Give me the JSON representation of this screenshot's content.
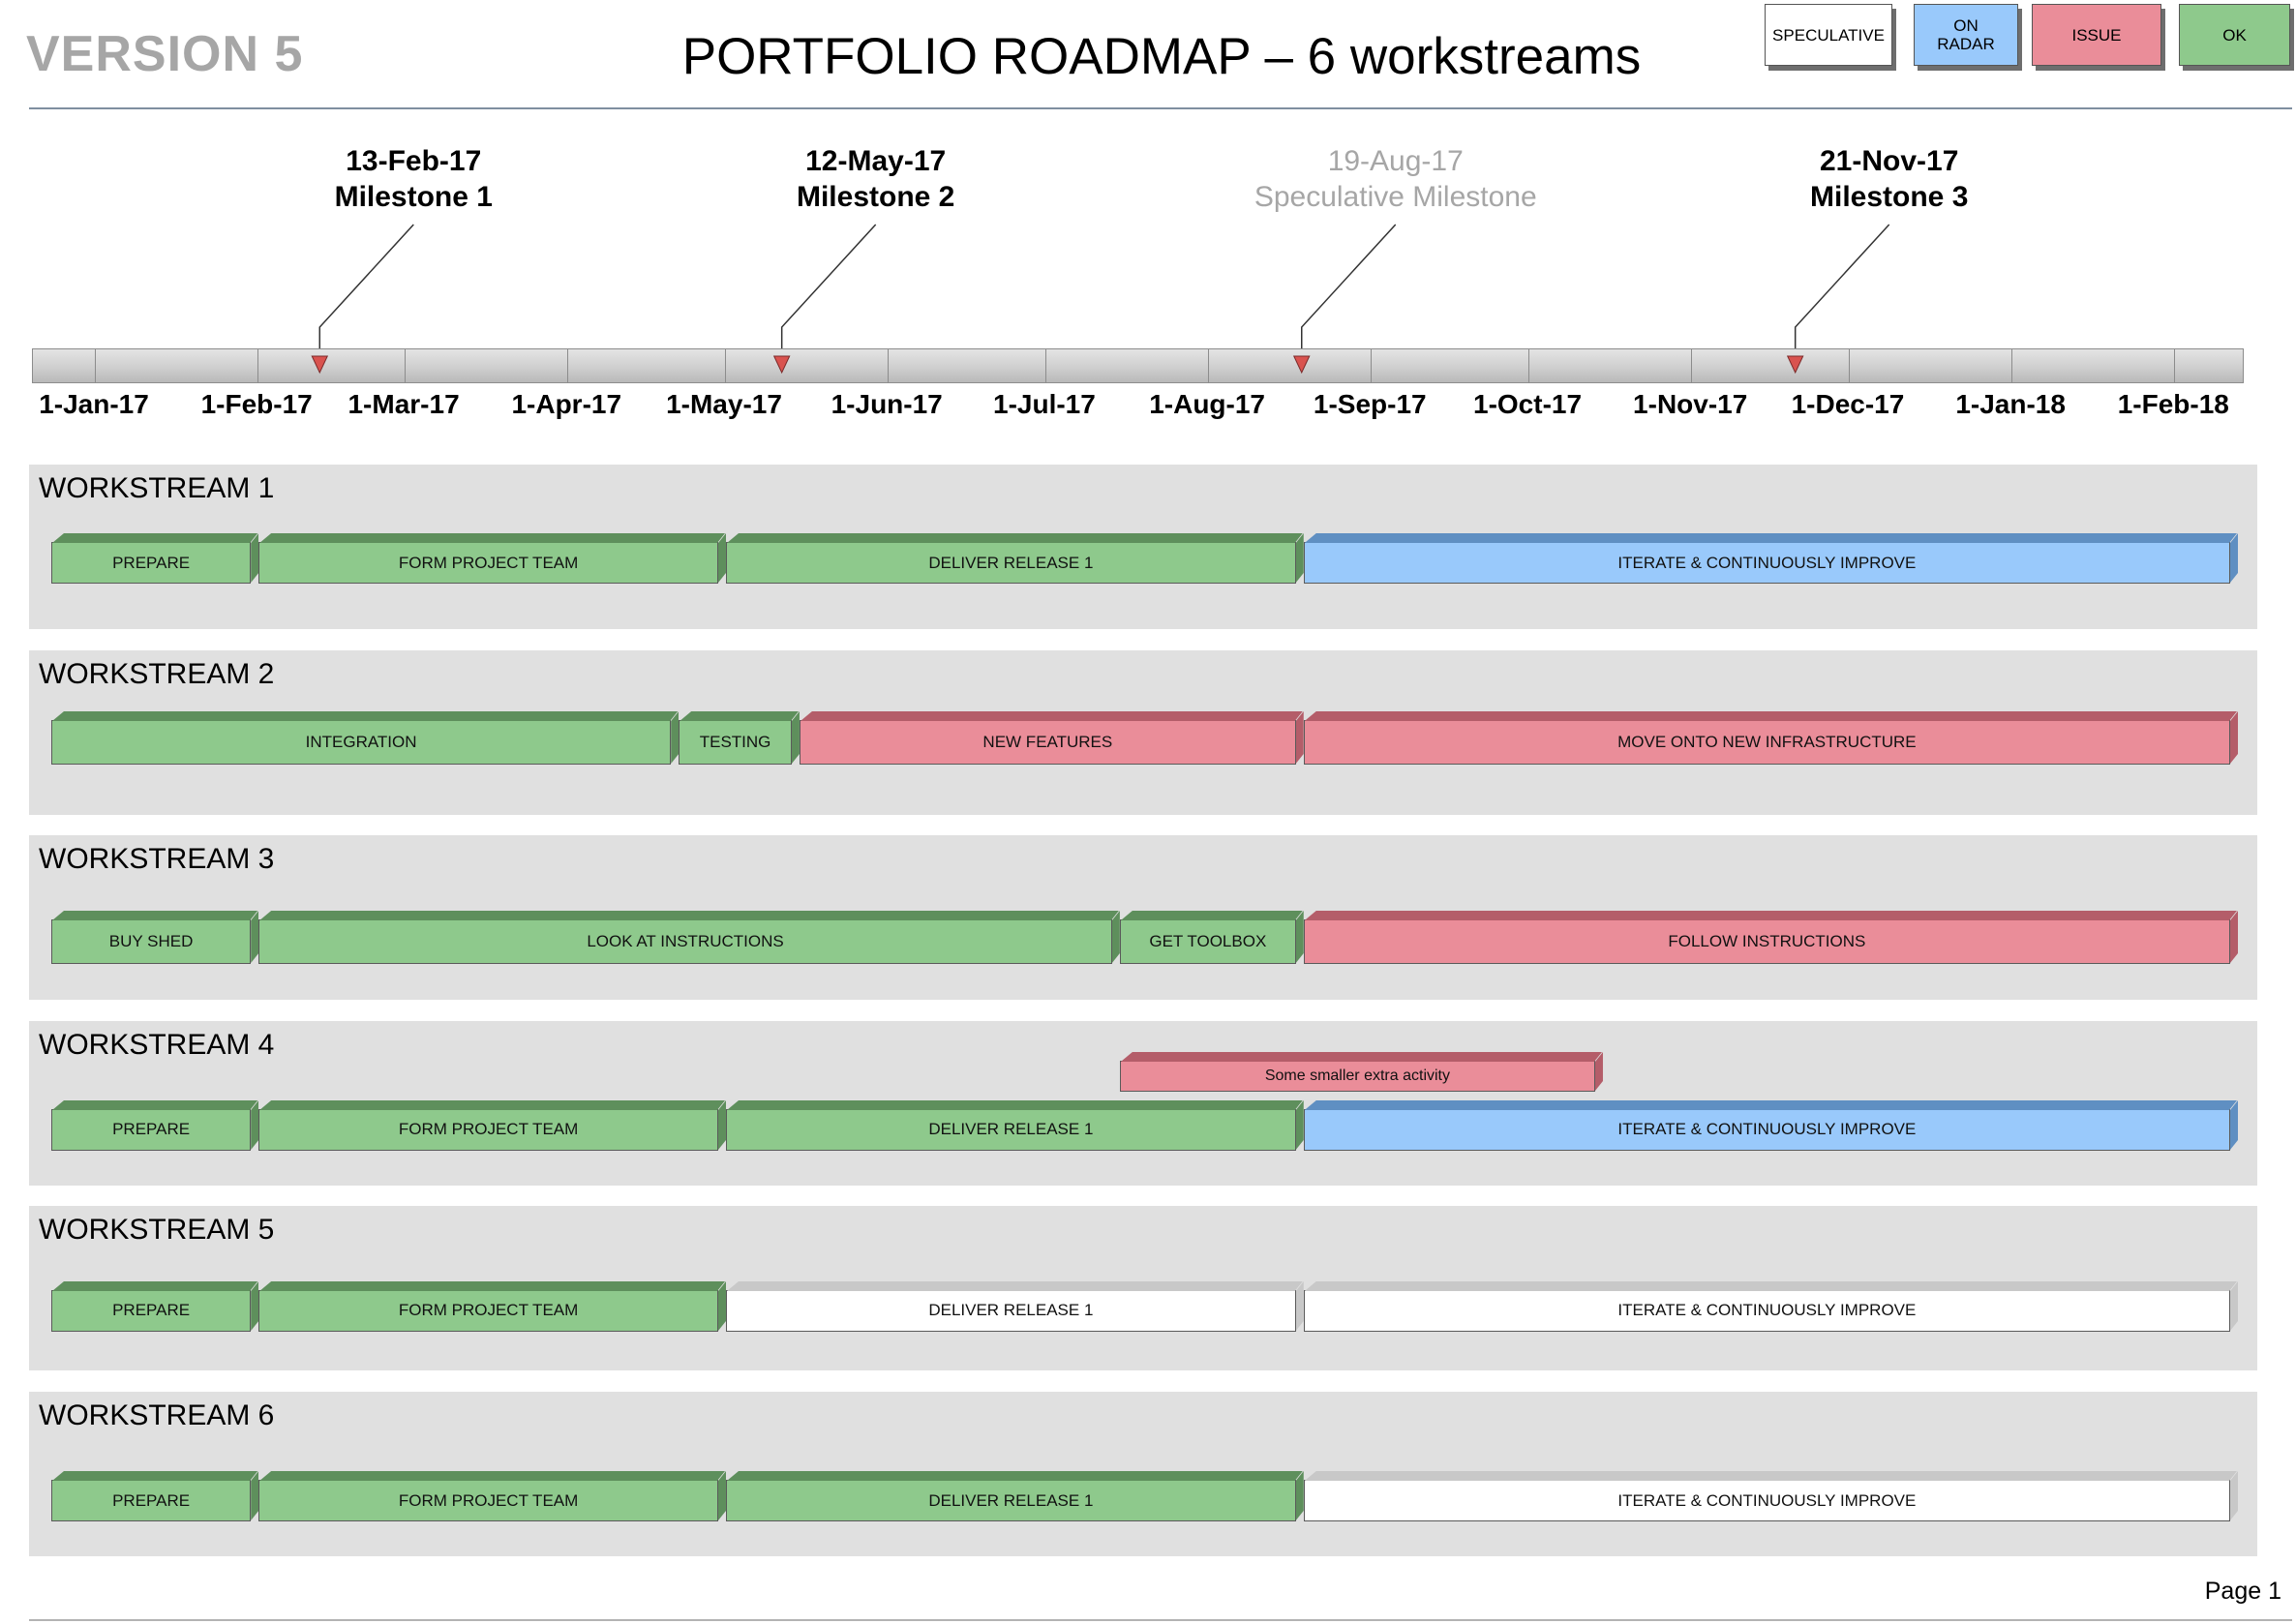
{
  "header": {
    "version": "VERSION 5",
    "title": "PORTFOLIO ROADMAP – 6 workstreams",
    "page": "Page 1"
  },
  "colors": {
    "ok": "#8ec98c",
    "ok_dark": "#5e8f5c",
    "issue": "#ea8d99",
    "issue_dark": "#b45d69",
    "radar": "#99c9fb",
    "radar_dark": "#5f8fc2",
    "speculative": "#ffffff",
    "speculative_dark": "#c8c8c8",
    "milestone_marker": "#d9534f"
  },
  "legend": [
    {
      "label": "SPECULATIVE",
      "status": "speculative"
    },
    {
      "label": "ON\nRADAR",
      "status": "radar"
    },
    {
      "label": "ISSUE",
      "status": "issue"
    },
    {
      "label": "OK",
      "status": "ok"
    }
  ],
  "timeline": {
    "start": "2017-01-01",
    "end": "2018-02-15",
    "months": [
      {
        "label": "1-Jan-17",
        "date": "2017-01-01"
      },
      {
        "label": "1-Feb-17",
        "date": "2017-02-01"
      },
      {
        "label": "1-Mar-17",
        "date": "2017-03-01"
      },
      {
        "label": "1-Apr-17",
        "date": "2017-04-01"
      },
      {
        "label": "1-May-17",
        "date": "2017-05-01"
      },
      {
        "label": "1-Jun-17",
        "date": "2017-06-01"
      },
      {
        "label": "1-Jul-17",
        "date": "2017-07-01"
      },
      {
        "label": "1-Aug-17",
        "date": "2017-08-01"
      },
      {
        "label": "1-Sep-17",
        "date": "2017-09-01"
      },
      {
        "label": "1-Oct-17",
        "date": "2017-10-01"
      },
      {
        "label": "1-Nov-17",
        "date": "2017-11-01"
      },
      {
        "label": "1-Dec-17",
        "date": "2017-12-01"
      },
      {
        "label": "1-Jan-18",
        "date": "2018-01-01"
      },
      {
        "label": "1-Feb-18",
        "date": "2018-02-01"
      }
    ]
  },
  "milestones": [
    {
      "date_label": "13-Feb-17",
      "name": "Milestone 1",
      "date": "2017-02-13",
      "speculative": false
    },
    {
      "date_label": "12-May-17",
      "name": "Milestone 2",
      "date": "2017-05-12",
      "speculative": false
    },
    {
      "date_label": "19-Aug-17",
      "name": "Speculative Milestone",
      "date": "2017-08-19",
      "speculative": true
    },
    {
      "date_label": "21-Nov-17",
      "name": "Milestone 3",
      "date": "2017-11-21",
      "speculative": false
    }
  ],
  "workstreams": [
    {
      "name": "WORKSTREAM 1",
      "tasks": [
        {
          "label": "PREPARE",
          "start": "2017-01-01",
          "end": "2017-02-01",
          "status": "ok"
        },
        {
          "label": "FORM PROJECT TEAM",
          "start": "2017-02-01",
          "end": "2017-05-01",
          "status": "ok"
        },
        {
          "label": "DELIVER RELEASE 1",
          "start": "2017-05-01",
          "end": "2017-08-19",
          "status": "ok"
        },
        {
          "label": "ITERATE & CONTINUOUSLY IMPROVE",
          "start": "2017-08-19",
          "end": "2018-02-15",
          "status": "radar"
        }
      ]
    },
    {
      "name": "WORKSTREAM 2",
      "tasks": [
        {
          "label": "INTEGRATION",
          "start": "2017-01-01",
          "end": "2017-04-22",
          "status": "ok"
        },
        {
          "label": "TESTING",
          "start": "2017-04-22",
          "end": "2017-05-15",
          "status": "ok"
        },
        {
          "label": "NEW FEATURES",
          "start": "2017-05-15",
          "end": "2017-08-19",
          "status": "issue"
        },
        {
          "label": "MOVE ONTO NEW INFRASTRUCTURE",
          "start": "2017-08-19",
          "end": "2018-02-15",
          "status": "issue"
        }
      ]
    },
    {
      "name": "WORKSTREAM 3",
      "tasks": [
        {
          "label": "BUY SHED",
          "start": "2017-01-01",
          "end": "2017-02-01",
          "status": "ok"
        },
        {
          "label": "LOOK AT INSTRUCTIONS",
          "start": "2017-02-01",
          "end": "2017-07-15",
          "status": "ok"
        },
        {
          "label": "GET TOOLBOX",
          "start": "2017-07-15",
          "end": "2017-08-19",
          "status": "ok"
        },
        {
          "label": "FOLLOW INSTRUCTIONS",
          "start": "2017-08-19",
          "end": "2018-02-15",
          "status": "issue"
        }
      ]
    },
    {
      "name": "WORKSTREAM 4",
      "tasks": [
        {
          "label": "PREPARE",
          "start": "2017-01-01",
          "end": "2017-02-01",
          "status": "ok"
        },
        {
          "label": "FORM PROJECT TEAM",
          "start": "2017-02-01",
          "end": "2017-05-01",
          "status": "ok"
        },
        {
          "label": "DELIVER RELEASE 1",
          "start": "2017-05-01",
          "end": "2017-08-19",
          "status": "ok"
        },
        {
          "label": "ITERATE & CONTINUOUSLY IMPROVE",
          "start": "2017-08-19",
          "end": "2018-02-15",
          "status": "radar"
        },
        {
          "label": "Some smaller extra activity",
          "start": "2017-07-15",
          "end": "2017-10-15",
          "status": "issue",
          "overlay": true
        }
      ]
    },
    {
      "name": "WORKSTREAM 5",
      "tasks": [
        {
          "label": "PREPARE",
          "start": "2017-01-01",
          "end": "2017-02-01",
          "status": "ok"
        },
        {
          "label": "FORM PROJECT TEAM",
          "start": "2017-02-01",
          "end": "2017-05-01",
          "status": "ok"
        },
        {
          "label": "DELIVER RELEASE 1",
          "start": "2017-05-01",
          "end": "2017-08-19",
          "status": "speculative"
        },
        {
          "label": "ITERATE & CONTINUOUSLY IMPROVE",
          "start": "2017-08-19",
          "end": "2018-02-15",
          "status": "speculative"
        }
      ]
    },
    {
      "name": "WORKSTREAM 6",
      "tasks": [
        {
          "label": "PREPARE",
          "start": "2017-01-01",
          "end": "2017-02-01",
          "status": "ok"
        },
        {
          "label": "FORM PROJECT TEAM",
          "start": "2017-02-01",
          "end": "2017-05-01",
          "status": "ok"
        },
        {
          "label": "DELIVER RELEASE 1",
          "start": "2017-05-01",
          "end": "2017-08-19",
          "status": "ok"
        },
        {
          "label": "ITERATE & CONTINUOUSLY IMPROVE",
          "start": "2017-08-19",
          "end": "2018-02-15",
          "status": "speculative"
        }
      ]
    }
  ]
}
